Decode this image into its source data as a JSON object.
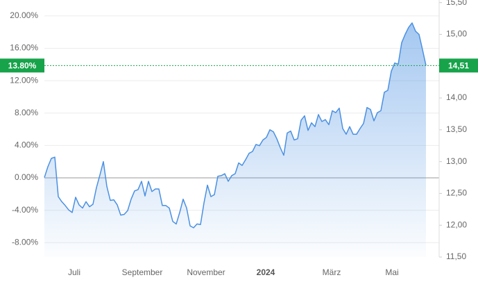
{
  "chart_data": {
    "type": "line",
    "ylim": [
      -9.78,
      21.96
    ],
    "yticks": [
      {
        "value": -8,
        "label": "-8.00%"
      },
      {
        "value": -4,
        "label": "-4.00%"
      },
      {
        "value": 0,
        "label": "0.00%"
      },
      {
        "value": 4,
        "label": "4.00%"
      },
      {
        "value": 8,
        "label": "8.00%"
      },
      {
        "value": 12,
        "label": "12.00%"
      },
      {
        "value": 16,
        "label": "16.00%"
      },
      {
        "value": 20,
        "label": "20.00%"
      }
    ],
    "y2lim": [
      11.5,
      15.54
    ],
    "y2ticks": [
      {
        "value": 11.5,
        "label": "11,50"
      },
      {
        "value": 12,
        "label": "12,00"
      },
      {
        "value": 12.5,
        "label": "12,50"
      },
      {
        "value": 13,
        "label": "13,00"
      },
      {
        "value": 13.5,
        "label": "13,50"
      },
      {
        "value": 14,
        "label": "14,00"
      },
      {
        "value": 14.5,
        "label": "14,50"
      },
      {
        "value": 15,
        "label": "15,00"
      },
      {
        "value": 15.5,
        "label": "15,50"
      }
    ],
    "xlim": [
      0,
      110
    ],
    "xticks": [
      {
        "value": 8.6,
        "label": "Juli"
      },
      {
        "value": 28.2,
        "label": "September"
      },
      {
        "value": 46.6,
        "label": "November"
      },
      {
        "value": 63.8,
        "label": "2024"
      },
      {
        "value": 82.8,
        "label": "März"
      },
      {
        "value": 100.2,
        "label": "Mai"
      }
    ],
    "xtick_bold": [
      false,
      false,
      false,
      true,
      false,
      false
    ],
    "grid": true,
    "series": [
      {
        "color": "#4a90e2",
        "axis": "y2",
        "values": [
          12.75,
          12.92,
          13.05,
          13.07,
          12.45,
          12.37,
          12.31,
          12.24,
          12.2,
          12.44,
          12.32,
          12.27,
          12.37,
          12.29,
          12.33,
          12.59,
          12.79,
          13.0,
          12.61,
          12.39,
          12.4,
          12.32,
          12.16,
          12.17,
          12.23,
          12.41,
          12.54,
          12.56,
          12.69,
          12.46,
          12.69,
          12.53,
          12.57,
          12.57,
          12.31,
          12.31,
          12.27,
          12.06,
          12.02,
          12.2,
          12.41,
          12.27,
          11.99,
          11.96,
          12.02,
          12.01,
          12.35,
          12.63,
          12.45,
          12.48,
          12.77,
          12.78,
          12.81,
          12.69,
          12.78,
          12.81,
          12.98,
          12.94,
          13.03,
          13.13,
          13.16,
          13.27,
          13.25,
          13.34,
          13.38,
          13.5,
          13.47,
          13.36,
          13.22,
          13.1,
          13.45,
          13.48,
          13.34,
          13.36,
          13.65,
          13.72,
          13.49,
          13.61,
          13.55,
          13.74,
          13.63,
          13.66,
          13.58,
          13.8,
          13.77,
          13.84,
          13.52,
          13.43,
          13.55,
          13.43,
          13.43,
          13.52,
          13.6,
          13.85,
          13.82,
          13.64,
          13.77,
          13.8,
          14.09,
          14.12,
          14.42,
          14.55,
          14.53,
          14.87,
          15.0,
          15.11,
          15.18,
          15.05,
          15.0,
          14.76,
          14.51
        ]
      }
    ],
    "last_value": {
      "y": {
        "value": 13.8,
        "label": "13.80%"
      },
      "y2": {
        "value": 14.51,
        "label": "14,51"
      }
    },
    "last_value_color": "#17a34a"
  }
}
